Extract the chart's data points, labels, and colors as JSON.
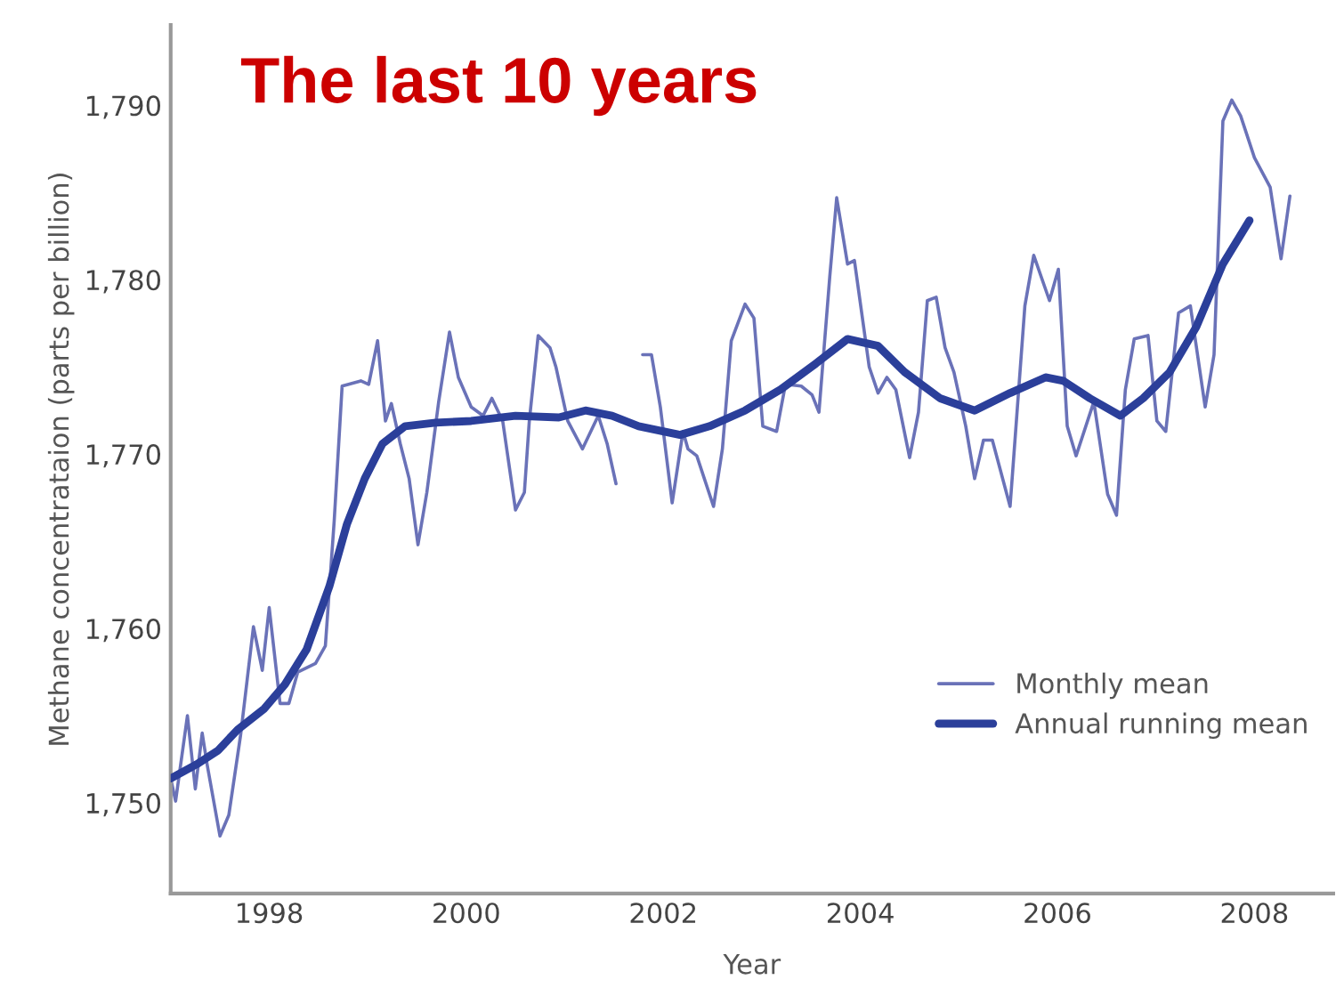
{
  "chart_data": {
    "type": "line",
    "title": "The last 10 years",
    "xlabel": "Year",
    "ylabel": "Methane concentrataion (parts per billion)",
    "xlim": [
      1997.0,
      2008.8
    ],
    "ylim": [
      1744.8,
      1794.6
    ],
    "xticks": [
      1998,
      2000,
      2002,
      2004,
      2006,
      2008
    ],
    "yticks": [
      {
        "value": 1750,
        "label": "1,750"
      },
      {
        "value": 1760,
        "label": "1,760"
      },
      {
        "value": 1770,
        "label": "1,770"
      },
      {
        "value": 1780,
        "label": "1,780"
      },
      {
        "value": 1790,
        "label": "1,790"
      }
    ],
    "grid": false,
    "legend": "bottom right",
    "line_style": "solid",
    "marker": "none",
    "series": [
      {
        "name": "Monthly mean",
        "color": "#6a72b8",
        "x": [
          1997.0,
          1997.05,
          1997.17,
          1997.25,
          1997.32,
          1997.37,
          1997.5,
          1997.59,
          1997.71,
          1997.84,
          1997.93,
          1998.0,
          1998.11,
          1998.2,
          1998.29,
          1998.47,
          1998.57,
          1998.66,
          1998.74,
          1998.93,
          1999.01,
          1999.1,
          1999.18,
          1999.24,
          1999.33,
          1999.42,
          1999.51,
          1999.6,
          1999.72,
          1999.83,
          1999.92,
          2000.05,
          2000.17,
          2000.26,
          2000.37,
          2000.5,
          2000.59,
          2000.64,
          2000.73,
          2000.85,
          2000.91,
          2001.03,
          2001.18,
          2001.34,
          2001.43,
          2001.52,
          2001.6,
          2001.79,
          2001.88,
          2001.97,
          2002.09,
          2002.2,
          2002.25,
          2002.34,
          2002.51,
          2002.6,
          2002.69,
          2002.83,
          2002.92,
          2003.01,
          2003.15,
          2003.24,
          2003.4,
          2003.51,
          2003.58,
          2003.69,
          2003.76,
          2003.87,
          2003.94,
          2004.09,
          2004.18,
          2004.27,
          2004.36,
          2004.5,
          2004.59,
          2004.68,
          2004.77,
          2004.86,
          2004.95,
          2005.07,
          2005.16,
          2005.25,
          2005.34,
          2005.52,
          2005.67,
          2005.76,
          2005.92,
          2006.01,
          2006.1,
          2006.19,
          2006.37,
          2006.51,
          2006.6,
          2006.69,
          2006.78,
          2006.92,
          2007.01,
          2007.1,
          2007.23,
          2007.35,
          2007.5,
          2007.59,
          2007.68,
          2007.77,
          2007.86,
          2008.0,
          2008.16,
          2008.27,
          2008.36
        ],
        "values": [
          1751.4,
          1750.1,
          1755.0,
          1750.8,
          1754.0,
          1752.2,
          1748.1,
          1749.3,
          1753.9,
          1760.1,
          1757.6,
          1761.2,
          1755.7,
          1755.7,
          1757.5,
          1758.0,
          1759.0,
          1766.2,
          1773.9,
          1774.2,
          1774.0,
          1776.5,
          1771.9,
          1772.9,
          1770.6,
          1768.6,
          1764.8,
          1767.8,
          1773.0,
          1777.0,
          1774.4,
          1772.7,
          1772.2,
          1773.2,
          1771.9,
          1766.8,
          1767.8,
          1771.9,
          1776.8,
          1776.1,
          1775.0,
          1771.9,
          1770.3,
          1772.2,
          1770.6,
          1768.3,
          null,
          1775.7,
          1775.7,
          1772.7,
          1767.2,
          1771.3,
          1770.3,
          1769.9,
          1767.0,
          1770.3,
          1776.5,
          1778.6,
          1777.8,
          1771.6,
          1771.3,
          1774.0,
          1773.9,
          1773.4,
          1772.4,
          1780.2,
          1784.7,
          1780.9,
          1781.1,
          1775.0,
          1773.5,
          1774.4,
          1773.7,
          1769.8,
          1772.4,
          1778.8,
          1779.0,
          1776.1,
          1774.7,
          1771.6,
          1768.6,
          1770.8,
          1770.8,
          1767.0,
          1778.5,
          1781.4,
          1778.8,
          1780.6,
          1771.6,
          1769.9,
          1773.0,
          1767.7,
          1766.5,
          1773.7,
          1776.6,
          1776.8,
          1771.9,
          1771.3,
          1778.1,
          1778.5,
          1772.7,
          1775.7,
          1789.1,
          1790.3,
          1789.4,
          1787.0,
          1785.3,
          1781.2,
          1784.8
        ]
      },
      {
        "name": "Annual running mean",
        "color": "#2b3f9a",
        "x": [
          1997.0,
          1997.26,
          1997.48,
          1997.68,
          1997.95,
          1998.16,
          1998.38,
          1998.61,
          1998.79,
          1998.97,
          1999.15,
          1999.38,
          1999.69,
          2000.05,
          2000.5,
          2000.94,
          2001.21,
          2001.48,
          2001.75,
          2002.17,
          2002.47,
          2002.83,
          2003.19,
          2003.55,
          2003.87,
          2004.18,
          2004.45,
          2004.81,
          2005.16,
          2005.52,
          2005.88,
          2006.06,
          2006.33,
          2006.64,
          2006.87,
          2007.14,
          2007.41,
          2007.68,
          2007.95
        ],
        "values": [
          1751.4,
          1752.2,
          1753.0,
          1754.2,
          1755.4,
          1756.8,
          1758.8,
          1762.4,
          1766.0,
          1768.6,
          1770.6,
          1771.6,
          1771.8,
          1771.9,
          1772.2,
          1772.1,
          1772.5,
          1772.2,
          1771.6,
          1771.1,
          1771.6,
          1772.5,
          1773.7,
          1775.2,
          1776.6,
          1776.2,
          1774.7,
          1773.2,
          1772.5,
          1773.5,
          1774.4,
          1774.2,
          1773.2,
          1772.2,
          1773.2,
          1774.7,
          1777.3,
          1780.9,
          1783.4
        ]
      }
    ]
  }
}
